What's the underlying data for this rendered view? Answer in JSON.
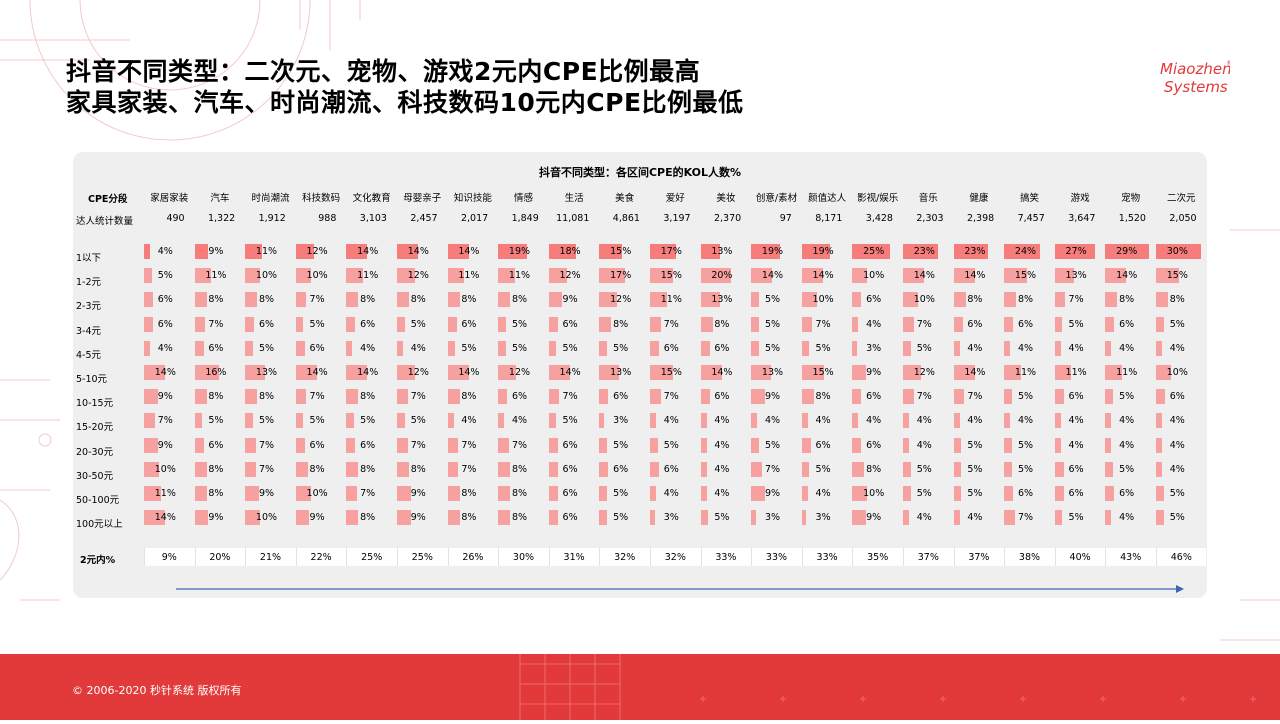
{
  "title_lines": [
    "抖音不同类型：二次元、宠物、游戏2元内CPE比例最高",
    "家具家装、汽车、时尚潮流、科技数码10元内CPE比例最低"
  ],
  "logo": {
    "line1": "Miaozhen",
    "reg": "®",
    "line2": "Systems"
  },
  "footer": "© 2006-2020 秒针系统 版权所有",
  "colors": {
    "bar": "#f7a0a0",
    "bar_top": "#f77d7d",
    "footer": "#e23a3a",
    "panel": "#f0eff0",
    "arrow": "#3e63b3"
  },
  "chart_data": {
    "type": "table",
    "title": "抖音不同类型：各区间CPE的KOL人数%",
    "row_header": "CPE分段",
    "count_label": "达人统计数量",
    "categories": [
      "家居家装",
      "汽车",
      "时尚潮流",
      "科技数码",
      "文化教育",
      "母婴亲子",
      "知识技能",
      "情感",
      "生活",
      "美食",
      "爱好",
      "美妆",
      "创意/素材",
      "颜值达人",
      "影视/娱乐",
      "音乐",
      "健康",
      "搞笑",
      "游戏",
      "宠物",
      "二次元"
    ],
    "counts": [
      "490",
      "1,322",
      "1,912",
      "988",
      "3,103",
      "2,457",
      "2,017",
      "1,849",
      "11,081",
      "4,861",
      "3,197",
      "2,370",
      "97",
      "8,171",
      "3,428",
      "2,303",
      "2,398",
      "7,457",
      "3,647",
      "1,520",
      "2,050"
    ],
    "ranges": [
      "1以下",
      "1-2元",
      "2-3元",
      "3-4元",
      "4-5元",
      "5-10元",
      "10-15元",
      "15-20元",
      "20-30元",
      "30-50元",
      "50-100元",
      "100元以上"
    ],
    "values": [
      [
        4,
        9,
        11,
        12,
        14,
        14,
        14,
        19,
        18,
        15,
        17,
        13,
        19,
        19,
        25,
        23,
        23,
        24,
        27,
        29,
        30
      ],
      [
        5,
        11,
        10,
        10,
        11,
        12,
        11,
        11,
        12,
        17,
        15,
        20,
        14,
        14,
        10,
        14,
        14,
        15,
        13,
        14,
        15
      ],
      [
        6,
        8,
        8,
        7,
        8,
        8,
        8,
        8,
        9,
        12,
        11,
        13,
        5,
        10,
        6,
        10,
        8,
        8,
        7,
        8,
        8
      ],
      [
        6,
        7,
        6,
        5,
        6,
        5,
        6,
        5,
        6,
        8,
        7,
        8,
        5,
        7,
        4,
        7,
        6,
        6,
        5,
        6,
        5
      ],
      [
        4,
        6,
        5,
        6,
        4,
        4,
        5,
        5,
        5,
        5,
        6,
        6,
        5,
        5,
        3,
        5,
        4,
        4,
        4,
        4,
        4
      ],
      [
        14,
        16,
        13,
        14,
        14,
        12,
        14,
        12,
        14,
        13,
        15,
        14,
        13,
        15,
        9,
        12,
        14,
        11,
        11,
        11,
        10
      ],
      [
        9,
        8,
        8,
        7,
        8,
        7,
        8,
        6,
        7,
        6,
        7,
        6,
        9,
        8,
        6,
        7,
        7,
        5,
        6,
        5,
        6
      ],
      [
        7,
        5,
        5,
        5,
        5,
        5,
        4,
        4,
        5,
        3,
        4,
        4,
        4,
        4,
        4,
        4,
        4,
        4,
        4,
        4,
        4
      ],
      [
        9,
        6,
        7,
        6,
        6,
        7,
        7,
        7,
        6,
        5,
        5,
        4,
        5,
        6,
        6,
        4,
        5,
        5,
        4,
        4,
        4
      ],
      [
        10,
        8,
        7,
        8,
        8,
        8,
        7,
        8,
        6,
        6,
        6,
        4,
        7,
        5,
        8,
        5,
        5,
        5,
        6,
        5,
        4
      ],
      [
        11,
        8,
        9,
        10,
        7,
        9,
        8,
        8,
        6,
        5,
        4,
        4,
        9,
        4,
        10,
        5,
        5,
        6,
        6,
        6,
        5
      ],
      [
        14,
        9,
        10,
        9,
        8,
        9,
        8,
        8,
        6,
        5,
        3,
        5,
        3,
        3,
        9,
        4,
        4,
        7,
        5,
        4,
        5
      ]
    ],
    "summary_label": "2元内%",
    "summary": [
      9,
      20,
      21,
      22,
      25,
      25,
      26,
      30,
      31,
      32,
      32,
      33,
      33,
      33,
      35,
      37,
      37,
      38,
      40,
      43,
      46
    ],
    "unit": "%"
  }
}
